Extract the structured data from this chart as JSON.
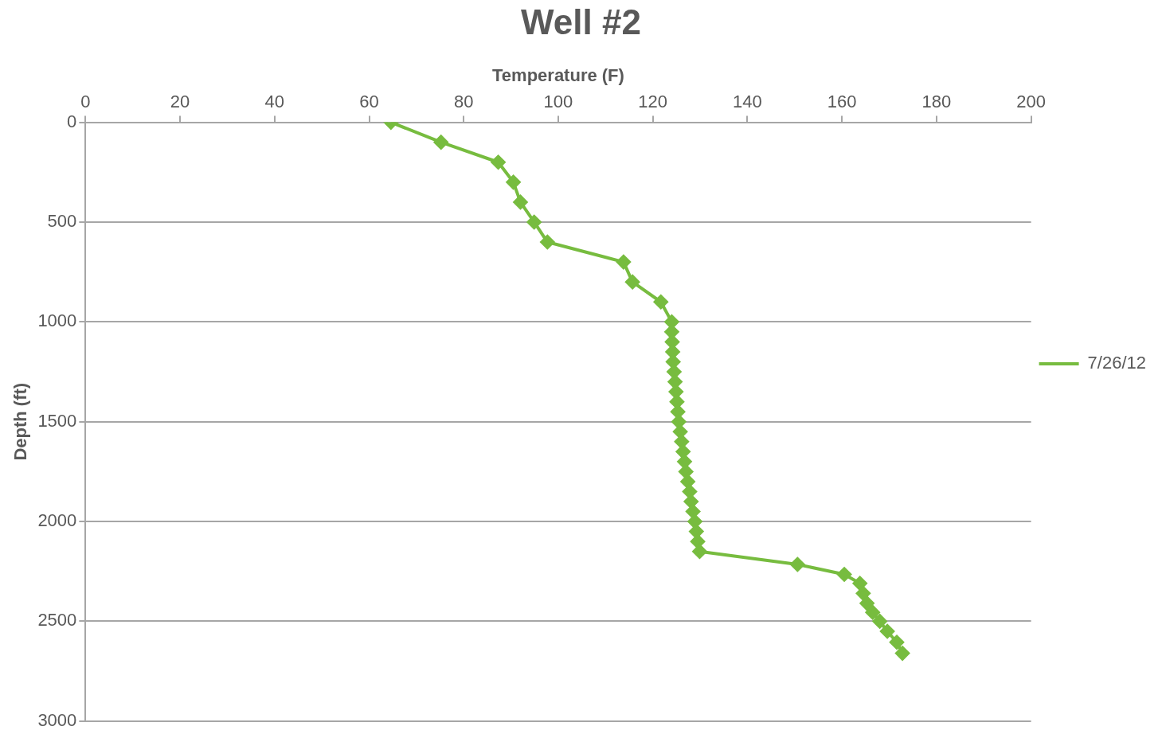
{
  "chart_data": {
    "type": "line",
    "title": "Well #2",
    "xlabel": "Temperature (F)",
    "ylabel": "Depth (ft)",
    "xlim": [
      0,
      200
    ],
    "xticks": [
      0,
      20,
      40,
      60,
      80,
      100,
      120,
      140,
      160,
      180,
      200
    ],
    "ylim": [
      3000,
      0
    ],
    "yticks": [
      0,
      500,
      1000,
      1500,
      2000,
      2500,
      3000
    ],
    "grid": "y",
    "legend": "right",
    "marker": "diamond",
    "line_style": "solid",
    "series": [
      {
        "name": "7/26/12",
        "color": "#77bc3f",
        "x": [
          64.6,
          75.2,
          87.3,
          90.5,
          92,
          94.9,
          97.7,
          113.8,
          115.7,
          121.7,
          124,
          124,
          124.1,
          124.2,
          124.3,
          124.5,
          124.7,
          124.9,
          125.1,
          125.3,
          125.5,
          125.8,
          126.1,
          126.4,
          126.7,
          127,
          127.4,
          127.8,
          128.1,
          128.5,
          128.9,
          129.2,
          129.5,
          129.9,
          150.6,
          160.5,
          163.8,
          164.5,
          165.3,
          166.5,
          168,
          169.6,
          171.6,
          172.8
        ],
        "values": [
          0,
          100,
          200,
          300,
          400,
          500,
          600,
          700,
          800,
          900,
          1000,
          1050,
          1100,
          1150,
          1200,
          1250,
          1300,
          1350,
          1400,
          1450,
          1500,
          1550,
          1600,
          1650,
          1700,
          1750,
          1800,
          1850,
          1900,
          1950,
          2000,
          2050,
          2100,
          2150,
          2215,
          2265,
          2310,
          2360,
          2410,
          2455,
          2500,
          2550,
          2605,
          2660
        ]
      }
    ]
  }
}
